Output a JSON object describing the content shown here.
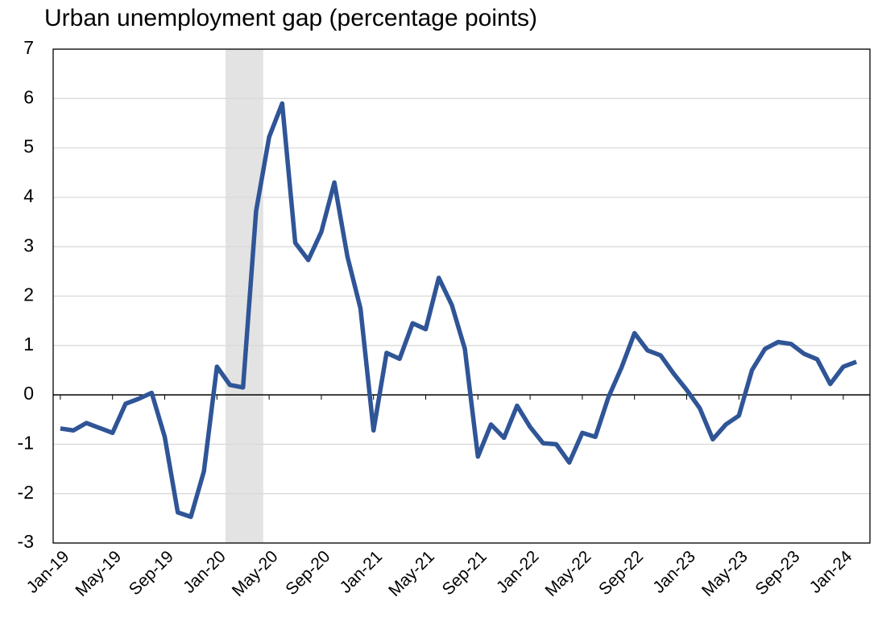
{
  "chart_data": {
    "type": "line",
    "title": "Urban unemployment gap (percentage points)",
    "categories": [
      "Jan-19",
      null,
      null,
      null,
      "May-19",
      null,
      null,
      null,
      "Sep-19",
      null,
      null,
      null,
      "Jan-20",
      null,
      null,
      null,
      "May-20",
      null,
      null,
      null,
      "Sep-20",
      null,
      null,
      null,
      "Jan-21",
      null,
      null,
      null,
      "May-21",
      null,
      null,
      null,
      "Sep-21",
      null,
      null,
      null,
      "Jan-22",
      null,
      null,
      null,
      "May-22",
      null,
      null,
      null,
      "Sep-22",
      null,
      null,
      null,
      "Jan-23",
      null,
      null,
      null,
      "May-23",
      null,
      null,
      null,
      "Sep-23",
      null,
      null,
      null,
      "Jan-24",
      null
    ],
    "series": [
      {
        "color": "#2f5597",
        "values": [
          -0.68,
          -0.72,
          -0.57,
          -0.67,
          -0.77,
          -0.18,
          -0.08,
          0.04,
          -0.85,
          -2.38,
          -2.47,
          -1.55,
          0.57,
          0.2,
          0.15,
          3.72,
          5.22,
          5.9,
          3.08,
          2.73,
          3.3,
          4.3,
          2.8,
          1.75,
          -0.72,
          0.85,
          0.73,
          1.45,
          1.33,
          2.37,
          1.82,
          0.93,
          -1.25,
          -0.6,
          -0.87,
          -0.22,
          -0.65,
          -0.98,
          -1.0,
          -1.37,
          -0.77,
          -0.85,
          -0.05,
          0.55,
          1.25,
          0.9,
          0.8,
          0.43,
          0.1,
          -0.27,
          -0.9,
          -0.6,
          -0.42,
          0.5,
          0.93,
          1.07,
          1.03,
          0.83,
          0.72,
          0.22,
          0.57,
          0.67
        ]
      }
    ],
    "shade": {
      "x": [
        12.65,
        15.55
      ],
      "color": "#e3e3e3"
    },
    "ylim": [
      -3,
      7
    ],
    "yticks": [
      -3,
      -2,
      -1,
      0,
      1,
      2,
      3,
      4,
      5,
      6,
      7
    ],
    "grid": true
  }
}
